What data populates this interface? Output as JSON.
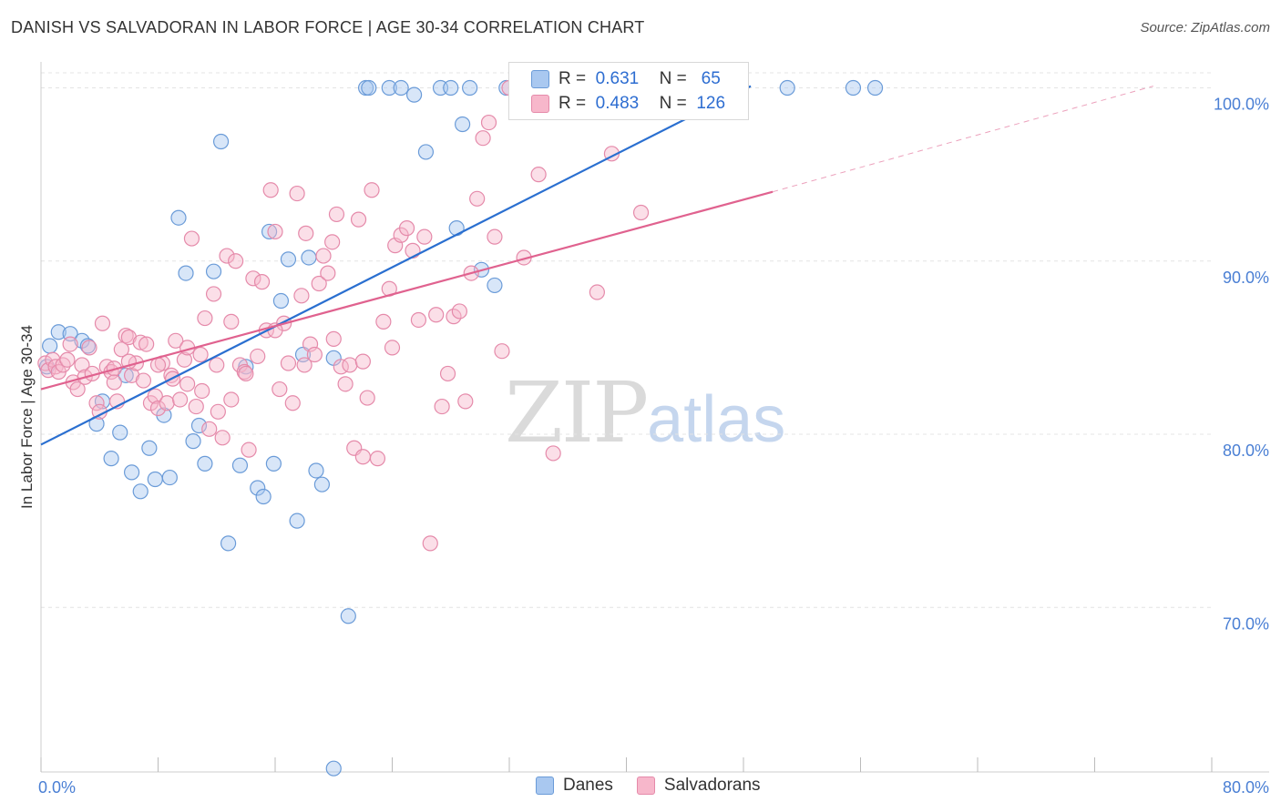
{
  "title": "DANISH VS SALVADORAN IN LABOR FORCE | AGE 30-34 CORRELATION CHART",
  "source": "Source: ZipAtlas.com",
  "watermark": {
    "zip": "ZIP",
    "atlas": "atlas"
  },
  "legend": {
    "rows": [
      {
        "r_label": "R =",
        "r_value": "0.631",
        "n_label": "N =",
        "n_value": "65"
      },
      {
        "r_label": "R =",
        "r_value": "0.483",
        "n_label": "N =",
        "n_value": "126"
      }
    ]
  },
  "colors": {
    "danes_fill": "#a9c8f0",
    "danes_stroke": "#6a9bd8",
    "danes_line": "#2a6fd0",
    "salv_fill": "#f7b7cb",
    "salv_stroke": "#e58aaa",
    "salv_line": "#e0628f",
    "grid": "#e4e4e4",
    "tick_label": "#4a7fd4"
  },
  "chart_data": {
    "type": "scatter",
    "title": "DANISH VS SALVADORAN IN LABOR FORCE | AGE 30-34 CORRELATION CHART",
    "xlabel": "",
    "ylabel": "In Labor Force | Age 30-34",
    "xlim": [
      0,
      80
    ],
    "ylim": [
      60.5,
      101.5
    ],
    "x_tick_labels": [
      {
        "value": 0,
        "label": "0.0%"
      },
      {
        "value": 80,
        "label": "80.0%"
      }
    ],
    "y_tick_labels": [
      {
        "value": 100,
        "label": "100.0%"
      },
      {
        "value": 90,
        "label": "90.0%"
      },
      {
        "value": 80,
        "label": "80.0%"
      },
      {
        "value": 70,
        "label": "70.0%"
      }
    ],
    "grid": true,
    "legend_position": "top-center",
    "series": [
      {
        "name": "Danes",
        "trend": {
          "x0": 0,
          "y0": 79.4,
          "x1": 48.5,
          "y1": 100.1,
          "dashed_to": null
        },
        "points": [
          [
            0.4,
            83.9
          ],
          [
            0.6,
            85.1
          ],
          [
            1.2,
            85.9
          ],
          [
            2.0,
            85.8
          ],
          [
            2.8,
            85.4
          ],
          [
            3.2,
            85.1
          ],
          [
            3.8,
            80.6
          ],
          [
            4.2,
            81.9
          ],
          [
            4.8,
            78.6
          ],
          [
            5.4,
            80.1
          ],
          [
            5.8,
            83.4
          ],
          [
            6.2,
            77.8
          ],
          [
            6.8,
            76.7
          ],
          [
            7.4,
            79.2
          ],
          [
            7.8,
            77.4
          ],
          [
            8.4,
            81.1
          ],
          [
            8.8,
            77.5
          ],
          [
            9.4,
            92.5
          ],
          [
            9.9,
            89.3
          ],
          [
            10.4,
            79.6
          ],
          [
            10.8,
            80.5
          ],
          [
            11.2,
            78.3
          ],
          [
            11.8,
            89.4
          ],
          [
            12.3,
            96.9
          ],
          [
            12.8,
            73.7
          ],
          [
            13.6,
            78.2
          ],
          [
            14.0,
            83.9
          ],
          [
            14.8,
            76.9
          ],
          [
            15.2,
            76.4
          ],
          [
            15.6,
            91.7
          ],
          [
            15.9,
            78.3
          ],
          [
            16.4,
            87.7
          ],
          [
            16.9,
            90.1
          ],
          [
            17.5,
            75.0
          ],
          [
            17.9,
            84.6
          ],
          [
            18.3,
            90.2
          ],
          [
            18.8,
            77.9
          ],
          [
            19.2,
            77.1
          ],
          [
            20.0,
            84.4
          ],
          [
            21.0,
            69.5
          ],
          [
            22.2,
            100.0
          ],
          [
            22.4,
            100.0
          ],
          [
            23.8,
            100.0
          ],
          [
            24.6,
            100.0
          ],
          [
            25.5,
            99.6
          ],
          [
            26.3,
            96.3
          ],
          [
            27.3,
            100.0
          ],
          [
            28.0,
            100.0
          ],
          [
            28.4,
            91.9
          ],
          [
            28.8,
            97.9
          ],
          [
            29.3,
            100.0
          ],
          [
            30.1,
            89.5
          ],
          [
            31.0,
            88.6
          ],
          [
            31.8,
            100.0
          ],
          [
            34.0,
            100.0
          ],
          [
            36.0,
            100.0
          ],
          [
            37.5,
            100.0
          ],
          [
            40.0,
            100.0
          ],
          [
            42.0,
            100.0
          ],
          [
            44.0,
            100.0
          ],
          [
            47.5,
            100.0
          ],
          [
            51.0,
            100.0
          ],
          [
            55.5,
            100.0
          ],
          [
            57.0,
            100.0
          ],
          [
            20.0,
            60.7
          ]
        ]
      },
      {
        "name": "Salvadorans",
        "trend": {
          "x0": 0,
          "y0": 82.6,
          "x1": 50.0,
          "y1": 94.0,
          "dashed_to": {
            "x": 76.0,
            "y": 100.1
          }
        },
        "points": [
          [
            0.3,
            84.1
          ],
          [
            0.5,
            83.7
          ],
          [
            0.8,
            84.3
          ],
          [
            1.0,
            83.9
          ],
          [
            1.2,
            83.6
          ],
          [
            1.5,
            84.0
          ],
          [
            1.8,
            84.3
          ],
          [
            2.0,
            85.2
          ],
          [
            2.2,
            83.0
          ],
          [
            2.5,
            82.6
          ],
          [
            2.8,
            84.0
          ],
          [
            3.0,
            83.3
          ],
          [
            3.3,
            85.0
          ],
          [
            3.5,
            83.5
          ],
          [
            3.8,
            81.8
          ],
          [
            4.0,
            81.3
          ],
          [
            4.2,
            86.4
          ],
          [
            4.5,
            83.9
          ],
          [
            4.8,
            83.6
          ],
          [
            5.0,
            83.8
          ],
          [
            5.2,
            81.9
          ],
          [
            5.5,
            84.9
          ],
          [
            5.8,
            85.7
          ],
          [
            6.0,
            85.6
          ],
          [
            6.2,
            83.4
          ],
          [
            6.5,
            84.1
          ],
          [
            6.8,
            85.3
          ],
          [
            7.0,
            83.1
          ],
          [
            7.2,
            85.2
          ],
          [
            7.5,
            81.8
          ],
          [
            7.8,
            82.2
          ],
          [
            8.0,
            81.5
          ],
          [
            8.3,
            84.1
          ],
          [
            8.6,
            81.8
          ],
          [
            8.9,
            83.4
          ],
          [
            9.2,
            85.4
          ],
          [
            9.5,
            82.0
          ],
          [
            9.8,
            84.3
          ],
          [
            10.0,
            82.9
          ],
          [
            10.3,
            91.3
          ],
          [
            10.6,
            81.6
          ],
          [
            10.9,
            84.6
          ],
          [
            11.2,
            86.7
          ],
          [
            11.5,
            80.3
          ],
          [
            11.8,
            88.1
          ],
          [
            12.1,
            81.3
          ],
          [
            12.4,
            79.8
          ],
          [
            12.7,
            90.3
          ],
          [
            13.0,
            86.5
          ],
          [
            13.3,
            90.0
          ],
          [
            13.6,
            84.0
          ],
          [
            13.9,
            83.6
          ],
          [
            14.2,
            79.1
          ],
          [
            14.5,
            89.0
          ],
          [
            14.8,
            84.5
          ],
          [
            15.1,
            88.8
          ],
          [
            15.4,
            86.0
          ],
          [
            15.7,
            94.1
          ],
          [
            16.0,
            91.7
          ],
          [
            16.3,
            82.6
          ],
          [
            16.6,
            86.4
          ],
          [
            16.9,
            84.1
          ],
          [
            17.2,
            81.8
          ],
          [
            17.5,
            93.9
          ],
          [
            17.8,
            88.0
          ],
          [
            18.1,
            91.6
          ],
          [
            18.4,
            85.2
          ],
          [
            18.7,
            84.6
          ],
          [
            19.0,
            88.7
          ],
          [
            19.3,
            90.3
          ],
          [
            19.6,
            89.3
          ],
          [
            19.9,
            91.1
          ],
          [
            20.2,
            92.7
          ],
          [
            20.5,
            83.9
          ],
          [
            20.8,
            82.9
          ],
          [
            21.1,
            84.0
          ],
          [
            21.4,
            79.2
          ],
          [
            21.7,
            92.4
          ],
          [
            22.0,
            78.7
          ],
          [
            22.3,
            82.1
          ],
          [
            22.6,
            94.1
          ],
          [
            23.0,
            78.6
          ],
          [
            23.4,
            86.5
          ],
          [
            23.8,
            88.4
          ],
          [
            24.2,
            90.9
          ],
          [
            24.6,
            91.5
          ],
          [
            25.0,
            91.9
          ],
          [
            25.4,
            90.6
          ],
          [
            25.8,
            86.6
          ],
          [
            26.2,
            91.4
          ],
          [
            26.6,
            73.7
          ],
          [
            27.0,
            86.9
          ],
          [
            27.4,
            81.6
          ],
          [
            27.8,
            83.5
          ],
          [
            28.2,
            86.8
          ],
          [
            28.6,
            87.1
          ],
          [
            29.0,
            81.9
          ],
          [
            29.4,
            89.3
          ],
          [
            29.8,
            93.6
          ],
          [
            30.2,
            97.1
          ],
          [
            30.6,
            98.0
          ],
          [
            31.0,
            91.4
          ],
          [
            31.5,
            84.8
          ],
          [
            32.0,
            100.0
          ],
          [
            33.0,
            90.2
          ],
          [
            34.0,
            95.0
          ],
          [
            35.0,
            78.9
          ],
          [
            37.0,
            99.0
          ],
          [
            38.0,
            88.2
          ],
          [
            39.0,
            96.2
          ],
          [
            40.0,
            99.8
          ],
          [
            41.0,
            92.8
          ],
          [
            6.0,
            84.2
          ],
          [
            8.0,
            84.0
          ],
          [
            10.0,
            85.0
          ],
          [
            12.0,
            84.0
          ],
          [
            14.0,
            83.5
          ],
          [
            16.0,
            86.0
          ],
          [
            18.0,
            84.0
          ],
          [
            20.0,
            85.5
          ],
          [
            22.0,
            84.2
          ],
          [
            24.0,
            85.0
          ],
          [
            5.0,
            83.0
          ],
          [
            9.0,
            83.2
          ],
          [
            11.0,
            82.5
          ],
          [
            13.0,
            82.0
          ]
        ]
      }
    ],
    "notes_legend": [
      {
        "label": "Danes"
      },
      {
        "label": "Salvadorans"
      }
    ]
  }
}
